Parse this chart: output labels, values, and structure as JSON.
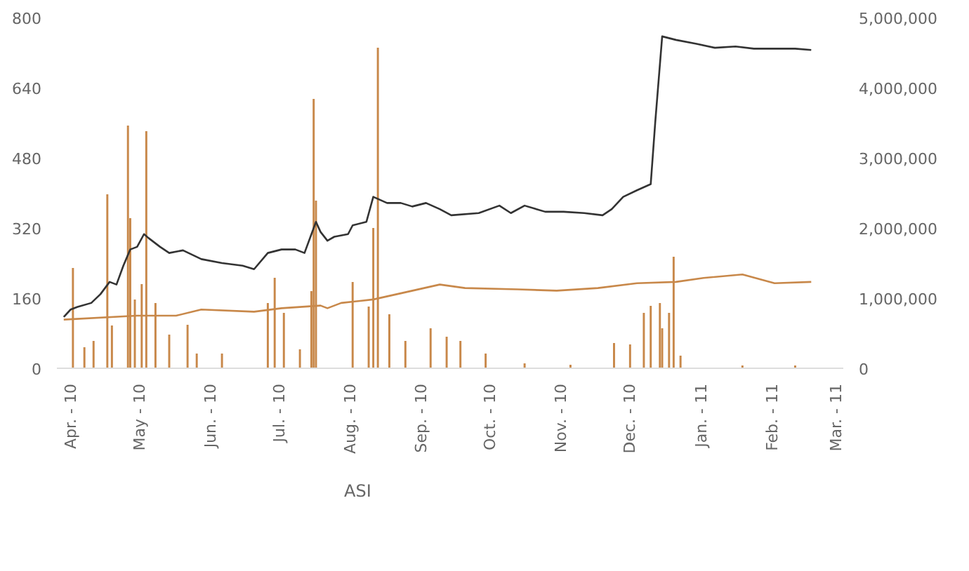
{
  "chart_data": {
    "type": "line",
    "xlim": [
      "2010-03-26",
      "2011-03-04"
    ],
    "xticks": [
      {
        "value": "2010-04-01",
        "label": "Apr. - 10"
      },
      {
        "value": "2010-05-01",
        "label": "May - 10"
      },
      {
        "value": "2010-06-01",
        "label": "Jun. - 10"
      },
      {
        "value": "2010-07-01",
        "label": "Jul. - 10"
      },
      {
        "value": "2010-08-01",
        "label": "Aug. - 10"
      },
      {
        "value": "2010-09-01",
        "label": "Sep. - 10"
      },
      {
        "value": "2010-10-01",
        "label": "Oct. - 10"
      },
      {
        "value": "2010-11-01",
        "label": "Nov. - 10"
      },
      {
        "value": "2010-12-01",
        "label": "Dec. - 10"
      },
      {
        "value": "2011-01-01",
        "label": "Jan. - 11"
      },
      {
        "value": "2011-02-01",
        "label": "Feb. - 11"
      },
      {
        "value": "2011-03-01",
        "label": "Mar. - 11"
      }
    ],
    "ylim": [
      0,
      800
    ],
    "yticks": [
      0,
      160,
      320,
      480,
      640,
      800
    ],
    "y2lim": [
      0,
      5000000
    ],
    "y2ticks": [
      {
        "value": 0,
        "label": "0"
      },
      {
        "value": 1000000,
        "label": "1,000,000"
      },
      {
        "value": 2000000,
        "label": "2,000,000"
      },
      {
        "value": 3000000,
        "label": "3,000,000"
      },
      {
        "value": 4000000,
        "label": "4,000,000"
      },
      {
        "value": 5000000,
        "label": "5,000,000"
      }
    ],
    "grid": false,
    "legend": "bottom",
    "series": [
      {
        "type": "bar",
        "axis": "y2",
        "color": "#c8884a",
        "x": [
          "2010-04-02",
          "2010-04-07",
          "2010-04-11",
          "2010-04-17",
          "2010-04-19",
          "2010-04-26",
          "2010-04-27",
          "2010-04-29",
          "2010-05-02",
          "2010-05-04",
          "2010-05-08",
          "2010-05-14",
          "2010-05-22",
          "2010-05-26",
          "2010-06-06",
          "2010-06-26",
          "2010-06-29",
          "2010-07-03",
          "2010-07-10",
          "2010-07-15",
          "2010-07-16",
          "2010-07-17",
          "2010-08-02",
          "2010-08-09",
          "2010-08-11",
          "2010-08-13",
          "2010-08-18",
          "2010-08-25",
          "2010-09-05",
          "2010-09-12",
          "2010-09-18",
          "2010-09-29",
          "2010-10-16",
          "2010-11-05",
          "2010-11-24",
          "2010-12-01",
          "2010-12-07",
          "2010-12-10",
          "2010-12-14",
          "2010-12-15",
          "2010-12-18",
          "2010-12-20",
          "2010-12-23",
          "2011-01-19",
          "2011-02-11"
        ],
        "values": [
          1430000,
          300000,
          390000,
          2480000,
          610000,
          3460000,
          2140000,
          980000,
          1200000,
          3380000,
          930000,
          480000,
          620000,
          210000,
          210000,
          930000,
          1290000,
          790000,
          270000,
          1100000,
          3840000,
          2390000,
          1230000,
          880000,
          2000000,
          4570000,
          770000,
          390000,
          570000,
          450000,
          390000,
          210000,
          70000,
          50000,
          360000,
          340000,
          790000,
          890000,
          930000,
          570000,
          790000,
          1590000,
          180000,
          40000,
          40000
        ]
      },
      {
        "color": "#333333",
        "x": [
          "2010-03-29",
          "2010-04-01",
          "2010-04-04",
          "2010-04-10",
          "2010-04-14",
          "2010-04-18",
          "2010-04-21",
          "2010-04-24",
          "2010-04-27",
          "2010-04-30",
          "2010-05-03",
          "2010-05-05",
          "2010-05-10",
          "2010-05-14",
          "2010-05-20",
          "2010-05-28",
          "2010-06-06",
          "2010-06-15",
          "2010-06-20",
          "2010-06-26",
          "2010-07-02",
          "2010-07-08",
          "2010-07-12",
          "2010-07-17",
          "2010-07-19",
          "2010-07-22",
          "2010-07-25",
          "2010-07-31",
          "2010-08-02",
          "2010-08-08",
          "2010-08-11",
          "2010-08-17",
          "2010-08-23",
          "2010-08-28",
          "2010-09-03",
          "2010-09-09",
          "2010-09-14",
          "2010-09-26",
          "2010-10-05",
          "2010-10-10",
          "2010-10-16",
          "2010-10-25",
          "2010-11-02",
          "2010-11-11",
          "2010-11-19",
          "2010-11-23",
          "2010-11-28",
          "2010-12-04",
          "2010-12-10",
          "2010-12-12",
          "2010-12-15",
          "2010-12-21",
          "2010-12-30",
          "2011-01-07",
          "2011-01-16",
          "2011-01-24",
          "2011-02-05",
          "2011-02-11",
          "2011-02-18"
        ],
        "values": [
          117,
          134,
          140,
          149,
          169,
          197,
          191,
          234,
          271,
          277,
          306,
          297,
          277,
          263,
          269,
          249,
          240,
          234,
          226,
          263,
          271,
          271,
          263,
          334,
          311,
          291,
          300,
          306,
          326,
          334,
          391,
          377,
          377,
          369,
          377,
          363,
          349,
          354,
          371,
          354,
          371,
          357,
          357,
          354,
          349,
          363,
          391,
          406,
          420,
          563,
          757,
          749,
          740,
          731,
          734,
          729,
          729,
          729,
          726
        ]
      },
      {
        "name": "ASI",
        "color": "#c8884a",
        "x": [
          "2010-03-29",
          "2010-04-30",
          "2010-05-17",
          "2010-05-28",
          "2010-06-20",
          "2010-07-02",
          "2010-07-19",
          "2010-07-22",
          "2010-07-28",
          "2010-08-11",
          "2010-08-23",
          "2010-09-09",
          "2010-09-20",
          "2010-10-13",
          "2010-10-30",
          "2010-11-17",
          "2010-12-04",
          "2010-12-21",
          "2011-01-02",
          "2011-01-19",
          "2011-02-02",
          "2011-02-18"
        ],
        "values": [
          111,
          120,
          120,
          134,
          129,
          137,
          143,
          137,
          149,
          157,
          171,
          191,
          183,
          180,
          177,
          183,
          194,
          197,
          206,
          214,
          194,
          197
        ]
      }
    ]
  }
}
